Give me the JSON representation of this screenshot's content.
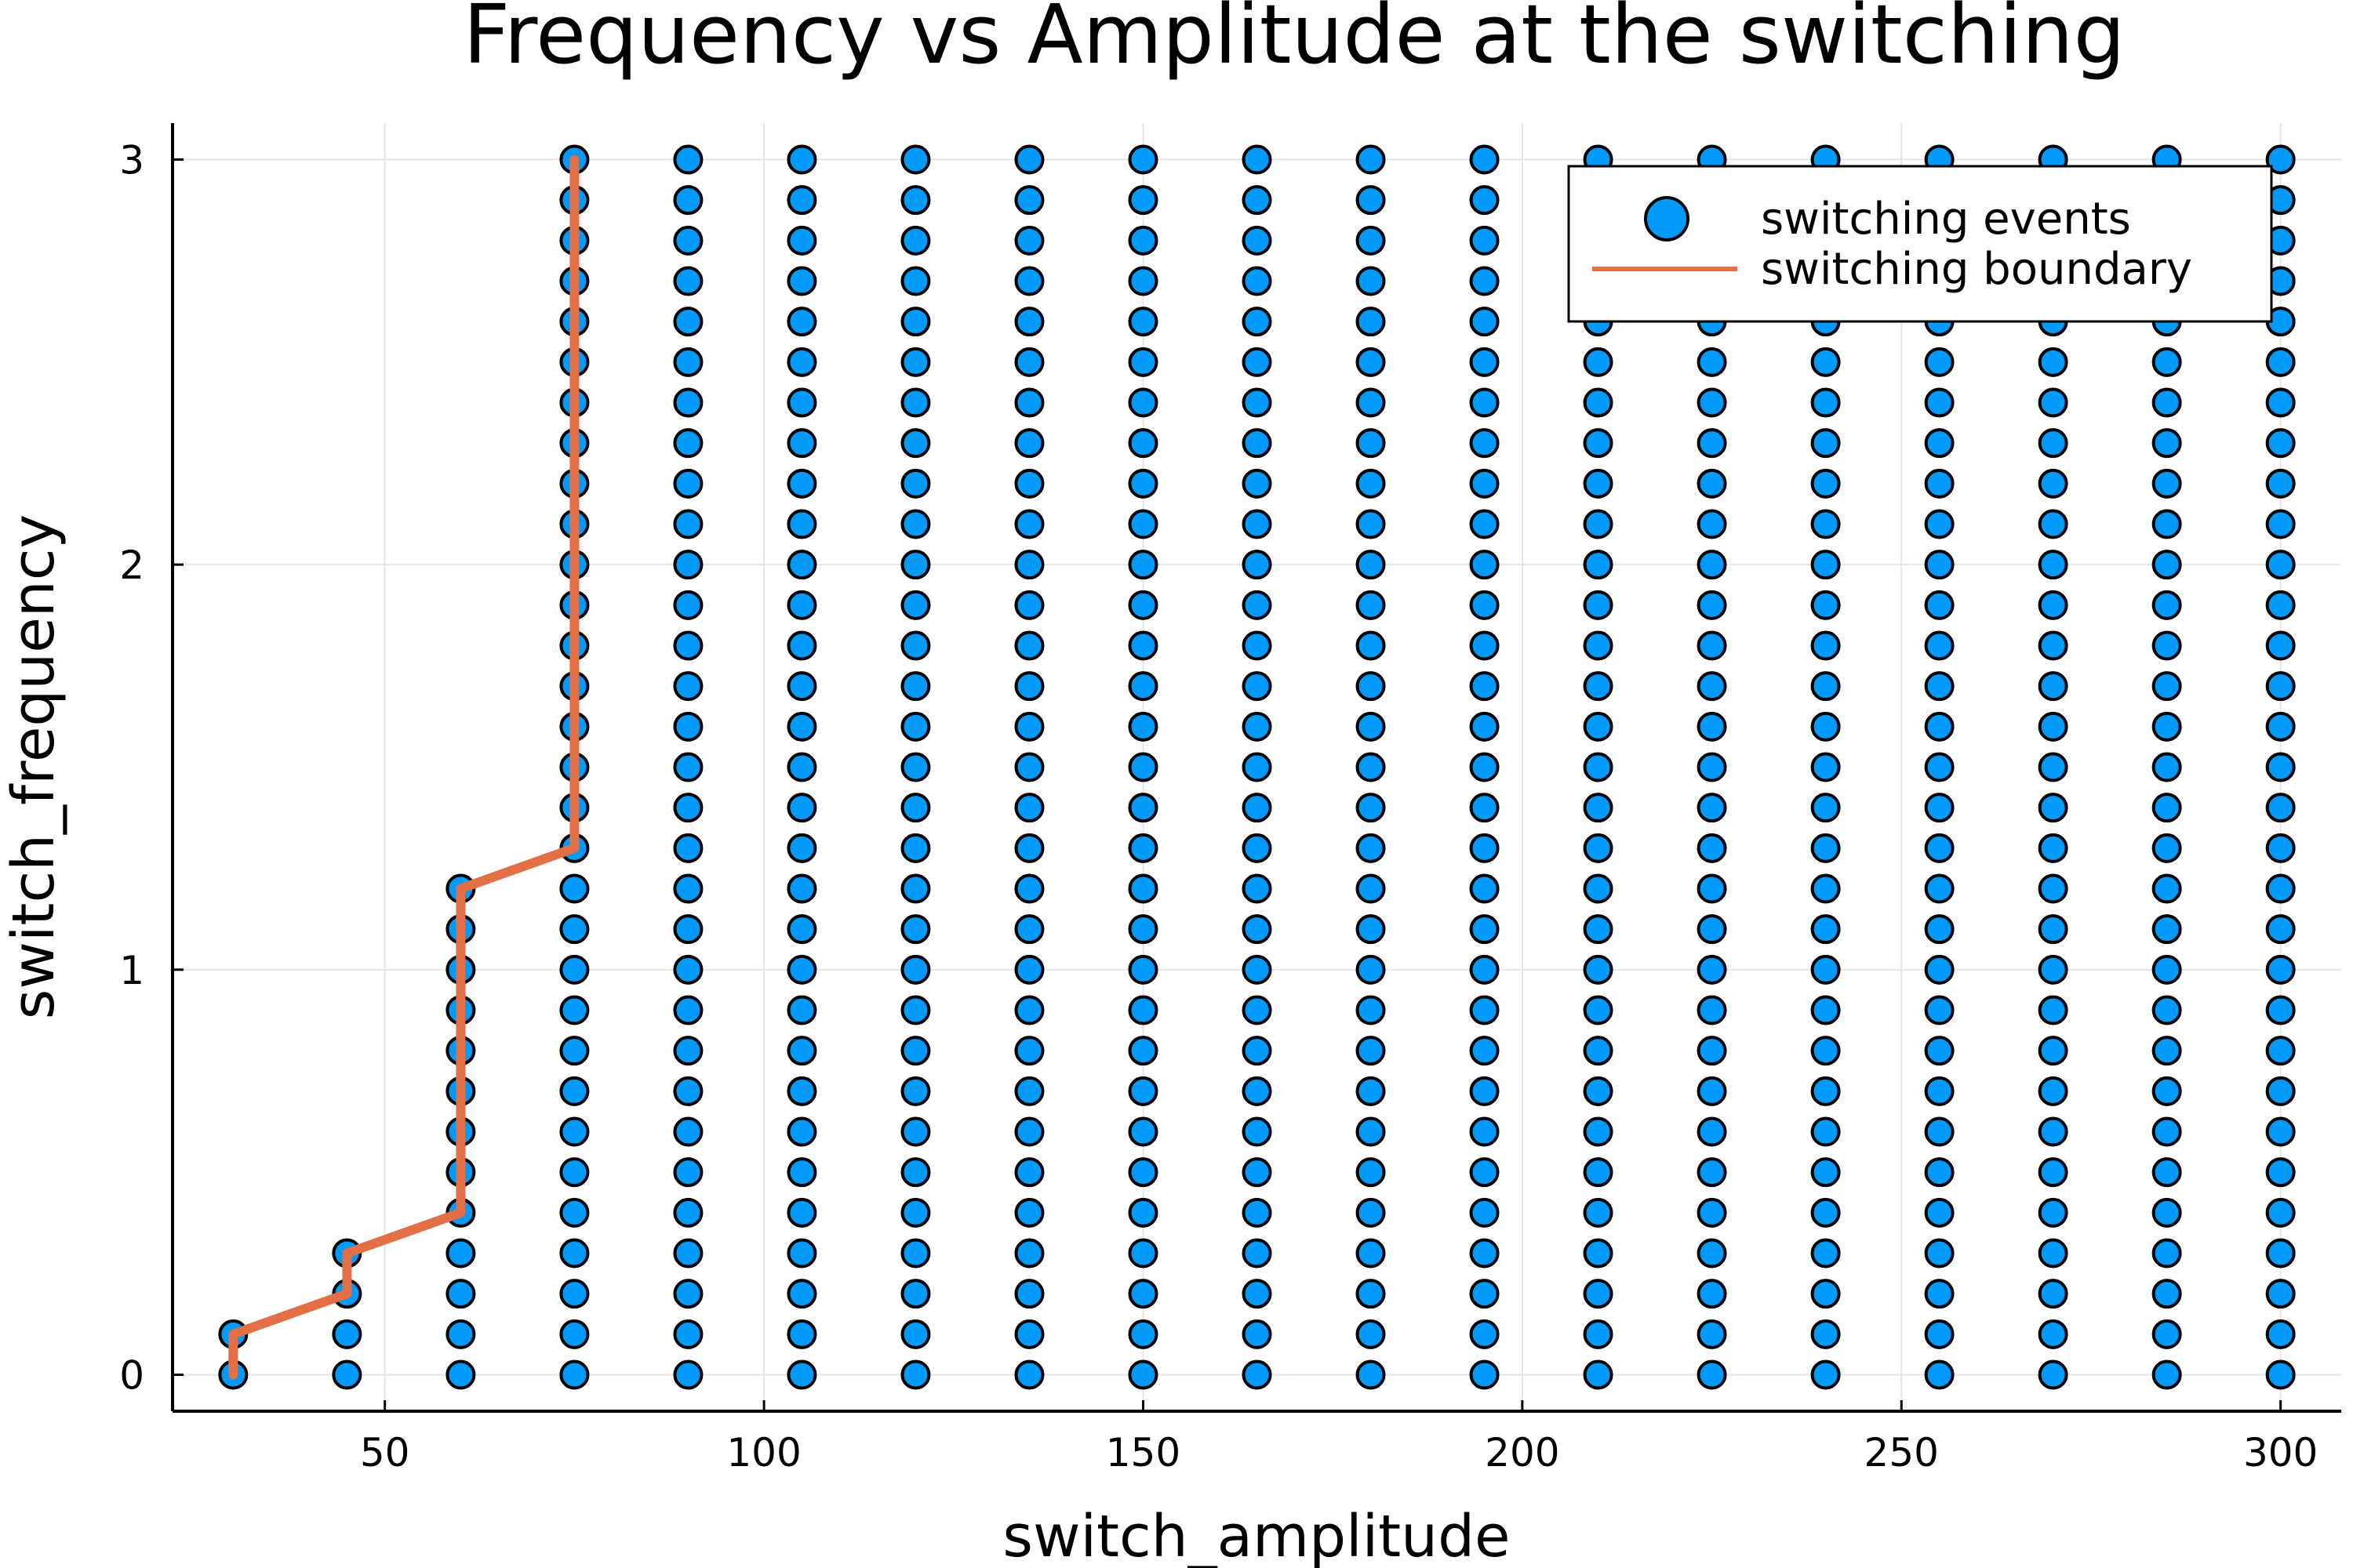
{
  "chart_data": {
    "type": "scatter",
    "title": "Frequency vs Amplitude at the switching",
    "xlabel": "switch_amplitude",
    "ylabel": "switch_frequency",
    "xlim": [
      22,
      308
    ],
    "ylim": [
      -0.09,
      3.09
    ],
    "xticks": [
      50,
      100,
      150,
      200,
      250,
      300
    ],
    "yticks": [
      0,
      1,
      2,
      3
    ],
    "grid": true,
    "legend_position": "top-right",
    "colors": {
      "points": "#009AFA",
      "point_edge": "#000000",
      "line": "#E26F46"
    },
    "series": [
      {
        "name": "switching events",
        "kind": "scatter",
        "columns": [
          {
            "x": 30,
            "y_min": 0.0,
            "y_max": 0.1
          },
          {
            "x": 45,
            "y_min": 0.0,
            "y_max": 0.3
          },
          {
            "x": 60,
            "y_min": 0.0,
            "y_max": 1.2
          },
          {
            "x": 75,
            "y_min": 0.0,
            "y_max": 3.0
          },
          {
            "x": 90,
            "y_min": 0.0,
            "y_max": 3.0
          },
          {
            "x": 105,
            "y_min": 0.0,
            "y_max": 3.0
          },
          {
            "x": 120,
            "y_min": 0.0,
            "y_max": 3.0
          },
          {
            "x": 135,
            "y_min": 0.0,
            "y_max": 3.0
          },
          {
            "x": 150,
            "y_min": 0.0,
            "y_max": 3.0
          },
          {
            "x": 165,
            "y_min": 0.0,
            "y_max": 3.0
          },
          {
            "x": 180,
            "y_min": 0.0,
            "y_max": 3.0
          },
          {
            "x": 195,
            "y_min": 0.0,
            "y_max": 3.0
          },
          {
            "x": 210,
            "y_min": 0.0,
            "y_max": 3.0
          },
          {
            "x": 225,
            "y_min": 0.0,
            "y_max": 3.0
          },
          {
            "x": 240,
            "y_min": 0.0,
            "y_max": 3.0
          },
          {
            "x": 255,
            "y_min": 0.0,
            "y_max": 3.0
          },
          {
            "x": 270,
            "y_min": 0.0,
            "y_max": 3.0
          },
          {
            "x": 285,
            "y_min": 0.0,
            "y_max": 3.0
          },
          {
            "x": 300,
            "y_min": 0.0,
            "y_max": 3.0
          }
        ],
        "y_step": 0.1
      },
      {
        "name": "switching boundary",
        "kind": "line",
        "x": [
          30,
          30,
          45,
          45,
          60,
          60,
          75,
          75
        ],
        "y": [
          0.0,
          0.1,
          0.2,
          0.3,
          0.4,
          1.2,
          1.3,
          3.0
        ]
      }
    ]
  }
}
